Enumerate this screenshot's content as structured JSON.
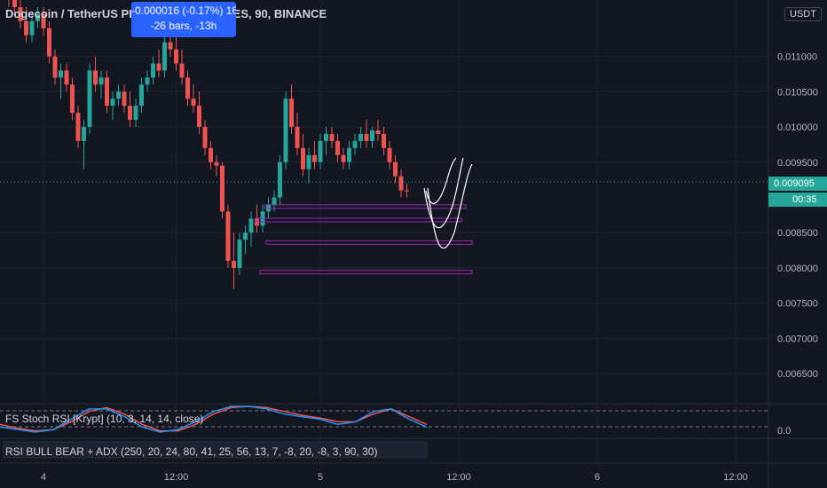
{
  "header": {
    "title": "Dogecoin / TetherUS PERPETUAL FUTURES, 90, BINANCE",
    "measure_line1": "-0.000016 (-0.17%) 16",
    "measure_line2": "-26 bars, -13h"
  },
  "currency_badge": "USDT",
  "last_price_tag": "0.009095",
  "countdown_tag": "00:35",
  "indicators": {
    "stoch": {
      "label": "FS Stoch RSI [Krypt] (10, 3, 14, 14, close)",
      "axis_value": "0.0"
    },
    "rsi_adx": {
      "label": "RSI BULL BEAR + ADX (250, 20, 24, 80, 41, 25, 56, 13, 7, -8, 20, -8, 3, 90, 30)"
    }
  },
  "colors": {
    "up": "#26a69a",
    "down": "#ef5350",
    "background": "#131722",
    "zone": "#9c27b0",
    "drawing": "#ffffff",
    "stoch_k": "#2196f3",
    "stoch_d": "#ef5350"
  },
  "chart_data": {
    "type": "candlestick",
    "price_axis": {
      "min": 0.0062,
      "max": 0.0118,
      "ticks": [
        "0.011000",
        "0.010500",
        "0.010000",
        "0.009500",
        "0.008500",
        "0.008000",
        "0.007500",
        "0.007000",
        "0.006500"
      ]
    },
    "time_axis_labels": [
      {
        "label": "4",
        "bar": 6
      },
      {
        "label": "12:00",
        "bar": 29
      },
      {
        "label": "5",
        "bar": 54
      },
      {
        "label": "12:00",
        "bar": 78
      },
      {
        "label": "6",
        "bar": 102
      },
      {
        "label": "12:00",
        "bar": 126
      }
    ],
    "candles": [
      [
        0.012,
        0.0121,
        0.0117,
        0.0118
      ],
      [
        0.0118,
        0.012,
        0.0116,
        0.0117
      ],
      [
        0.0117,
        0.0118,
        0.0114,
        0.0115
      ],
      [
        0.0115,
        0.0117,
        0.0112,
        0.0113
      ],
      [
        0.0113,
        0.0116,
        0.0112,
        0.0115
      ],
      [
        0.0115,
        0.0117,
        0.0114,
        0.0116
      ],
      [
        0.0116,
        0.0117,
        0.0113,
        0.0114
      ],
      [
        0.0114,
        0.0115,
        0.0109,
        0.011
      ],
      [
        0.011,
        0.0111,
        0.0106,
        0.0107
      ],
      [
        0.0107,
        0.0109,
        0.0104,
        0.0108
      ],
      [
        0.0108,
        0.0109,
        0.0105,
        0.0106
      ],
      [
        0.0106,
        0.0107,
        0.0101,
        0.0102
      ],
      [
        0.0102,
        0.0103,
        0.0097,
        0.0098
      ],
      [
        0.0098,
        0.0101,
        0.0094,
        0.01
      ],
      [
        0.01,
        0.0109,
        0.0099,
        0.0108
      ],
      [
        0.0108,
        0.011,
        0.0105,
        0.0106
      ],
      [
        0.0106,
        0.0108,
        0.0104,
        0.0107
      ],
      [
        0.0107,
        0.0108,
        0.0102,
        0.0103
      ],
      [
        0.0103,
        0.0105,
        0.0101,
        0.0104
      ],
      [
        0.0104,
        0.0106,
        0.0103,
        0.0105
      ],
      [
        0.0105,
        0.0106,
        0.0102,
        0.0103
      ],
      [
        0.0103,
        0.0105,
        0.01,
        0.0101
      ],
      [
        0.0101,
        0.0104,
        0.01,
        0.0103
      ],
      [
        0.0103,
        0.0107,
        0.0102,
        0.0106
      ],
      [
        0.0106,
        0.0108,
        0.0105,
        0.0107
      ],
      [
        0.0107,
        0.011,
        0.0106,
        0.0109
      ],
      [
        0.0109,
        0.0111,
        0.0107,
        0.0108
      ],
      [
        0.0108,
        0.0113,
        0.0107,
        0.0112
      ],
      [
        0.0112,
        0.0114,
        0.011,
        0.0111
      ],
      [
        0.0111,
        0.0113,
        0.0108,
        0.0109
      ],
      [
        0.0109,
        0.0111,
        0.0106,
        0.0107
      ],
      [
        0.0107,
        0.0108,
        0.0103,
        0.0104
      ],
      [
        0.0104,
        0.0106,
        0.0102,
        0.0103
      ],
      [
        0.0103,
        0.0105,
        0.0099,
        0.01
      ],
      [
        0.01,
        0.0101,
        0.0096,
        0.0097
      ],
      [
        0.0097,
        0.0098,
        0.0094,
        0.0095
      ],
      [
        0.0095,
        0.0096,
        0.0093,
        0.00945
      ],
      [
        0.00945,
        0.0095,
        0.0087,
        0.0088
      ],
      [
        0.0088,
        0.0089,
        0.008,
        0.0081
      ],
      [
        0.0081,
        0.0085,
        0.0077,
        0.008
      ],
      [
        0.008,
        0.0085,
        0.0079,
        0.0084
      ],
      [
        0.0084,
        0.0086,
        0.0082,
        0.0085
      ],
      [
        0.0085,
        0.0088,
        0.0083,
        0.0087
      ],
      [
        0.0087,
        0.0089,
        0.0085,
        0.0086
      ],
      [
        0.0086,
        0.0089,
        0.0085,
        0.0088
      ],
      [
        0.0088,
        0.009,
        0.0087,
        0.0089
      ],
      [
        0.0089,
        0.0091,
        0.0088,
        0.009
      ],
      [
        0.009,
        0.0096,
        0.0089,
        0.0095
      ],
      [
        0.0095,
        0.0105,
        0.0094,
        0.0104
      ],
      [
        0.0104,
        0.0106,
        0.0099,
        0.01
      ],
      [
        0.01,
        0.0102,
        0.0096,
        0.0097
      ],
      [
        0.0097,
        0.0099,
        0.0093,
        0.0094
      ],
      [
        0.0094,
        0.0097,
        0.0092,
        0.0096
      ],
      [
        0.0096,
        0.0098,
        0.0094,
        0.0095
      ],
      [
        0.0095,
        0.0099,
        0.0094,
        0.0098
      ],
      [
        0.0098,
        0.01,
        0.0096,
        0.0099
      ],
      [
        0.0099,
        0.01,
        0.0097,
        0.0098
      ],
      [
        0.0098,
        0.0099,
        0.0095,
        0.0096
      ],
      [
        0.0096,
        0.0097,
        0.0094,
        0.0095
      ],
      [
        0.0095,
        0.0098,
        0.0094,
        0.0097
      ],
      [
        0.0097,
        0.0099,
        0.0096,
        0.0098
      ],
      [
        0.0098,
        0.01,
        0.0097,
        0.0099
      ],
      [
        0.0099,
        0.0101,
        0.0097,
        0.0098
      ],
      [
        0.0098,
        0.01,
        0.0097,
        0.00995
      ],
      [
        0.00995,
        0.0101,
        0.0098,
        0.0099
      ],
      [
        0.0099,
        0.01,
        0.0096,
        0.0097
      ],
      [
        0.0097,
        0.0098,
        0.0094,
        0.0095
      ],
      [
        0.0095,
        0.0096,
        0.0092,
        0.0093
      ],
      [
        0.0093,
        0.0094,
        0.009,
        0.0091
      ],
      [
        0.0091,
        0.0092,
        0.009,
        0.00909
      ]
    ],
    "horizontal_zones": [
      0.00887,
      0.00868,
      0.00836,
      0.00794
    ],
    "stoch_series": {
      "k": [
        0.2,
        0.1,
        0.0,
        0.1,
        0.5,
        0.9,
        0.9,
        0.6,
        0.2,
        0.0,
        0.1,
        0.4,
        0.8,
        1.0,
        1.0,
        0.9,
        0.7,
        0.6,
        0.5,
        0.3,
        0.4,
        0.8,
        0.9,
        0.5,
        0.2
      ],
      "d": [
        0.3,
        0.15,
        0.05,
        0.1,
        0.4,
        0.8,
        0.95,
        0.7,
        0.3,
        0.05,
        0.05,
        0.3,
        0.7,
        0.95,
        1.0,
        0.95,
        0.8,
        0.65,
        0.55,
        0.4,
        0.4,
        0.7,
        0.9,
        0.6,
        0.3
      ]
    }
  }
}
